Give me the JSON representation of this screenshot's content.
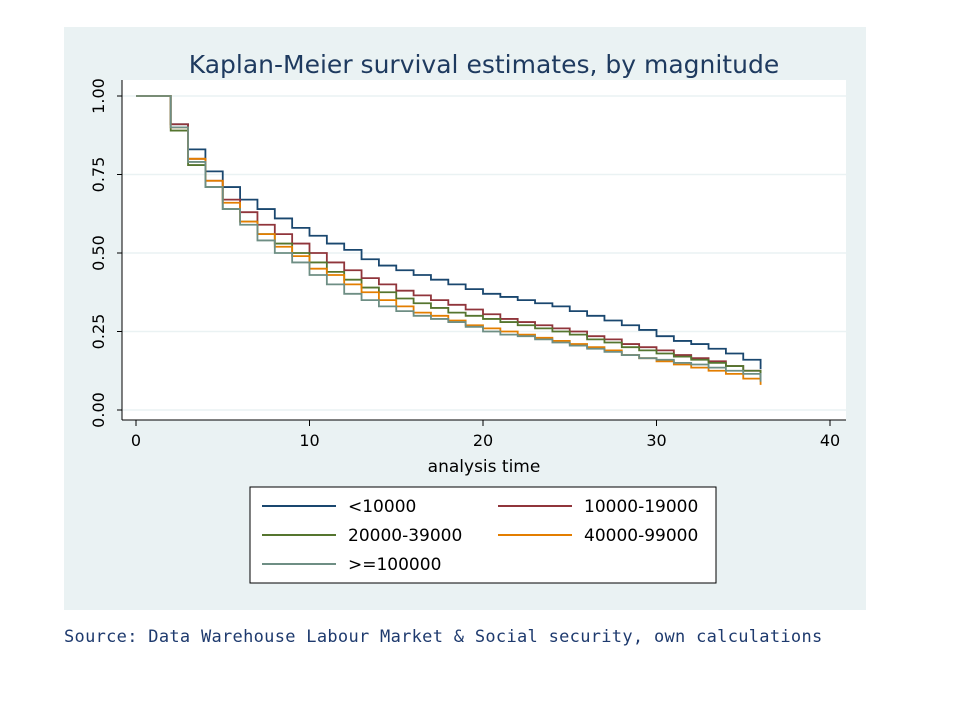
{
  "colors": {
    "panel_bg": "#EAF2F3",
    "plot_bg": "#FFFFFF",
    "grid": "#EAF2F3",
    "axis": "#000000",
    "title": "#1E3A5F",
    "caption": "#1E3A6E"
  },
  "chart_data": {
    "type": "line",
    "step": true,
    "title": "Kaplan-Meier survival estimates, by magnitude",
    "xlabel": "analysis time",
    "ylabel": "",
    "xlim": [
      0,
      40
    ],
    "ylim": [
      0,
      1
    ],
    "xticks": [
      0,
      10,
      20,
      30,
      40
    ],
    "xtick_labels": [
      "0",
      "10",
      "20",
      "30",
      "40"
    ],
    "yticks": [
      0,
      0.25,
      0.5,
      0.75,
      1
    ],
    "ytick_labels": [
      "0.00",
      "0.25",
      "0.50",
      "0.75",
      "1.00"
    ],
    "grid": true,
    "legend": "bottom",
    "x": [
      0,
      1,
      2,
      3,
      4,
      5,
      6,
      7,
      8,
      9,
      10,
      11,
      12,
      13,
      14,
      15,
      16,
      17,
      18,
      19,
      20,
      21,
      22,
      23,
      24,
      25,
      26,
      27,
      28,
      29,
      30,
      31,
      32,
      33,
      34,
      35,
      36
    ],
    "series": [
      {
        "name": "<10000",
        "color": "#1A476F",
        "values": [
          1.0,
          1.0,
          0.91,
          0.83,
          0.76,
          0.71,
          0.67,
          0.64,
          0.61,
          0.58,
          0.555,
          0.53,
          0.51,
          0.48,
          0.46,
          0.445,
          0.43,
          0.415,
          0.4,
          0.385,
          0.37,
          0.36,
          0.35,
          0.34,
          0.33,
          0.315,
          0.3,
          0.285,
          0.27,
          0.255,
          0.235,
          0.22,
          0.21,
          0.195,
          0.18,
          0.16,
          0.13
        ]
      },
      {
        "name": "10000-19000",
        "color": "#90353B",
        "values": [
          1.0,
          1.0,
          0.91,
          0.8,
          0.73,
          0.67,
          0.63,
          0.59,
          0.56,
          0.53,
          0.5,
          0.47,
          0.445,
          0.42,
          0.4,
          0.38,
          0.365,
          0.35,
          0.335,
          0.32,
          0.305,
          0.29,
          0.28,
          0.27,
          0.26,
          0.25,
          0.235,
          0.225,
          0.21,
          0.2,
          0.19,
          0.175,
          0.165,
          0.155,
          0.14,
          0.125,
          0.105
        ]
      },
      {
        "name": "20000-39000",
        "color": "#55752F",
        "values": [
          1.0,
          1.0,
          0.89,
          0.78,
          0.71,
          0.64,
          0.6,
          0.56,
          0.53,
          0.5,
          0.47,
          0.44,
          0.415,
          0.39,
          0.375,
          0.355,
          0.34,
          0.325,
          0.31,
          0.3,
          0.29,
          0.28,
          0.27,
          0.26,
          0.25,
          0.24,
          0.225,
          0.215,
          0.2,
          0.19,
          0.18,
          0.17,
          0.16,
          0.15,
          0.14,
          0.125,
          0.1
        ]
      },
      {
        "name": "40000-99000",
        "color": "#E37E00",
        "values": [
          1.0,
          1.0,
          0.9,
          0.8,
          0.73,
          0.66,
          0.6,
          0.56,
          0.52,
          0.49,
          0.45,
          0.43,
          0.4,
          0.375,
          0.35,
          0.33,
          0.31,
          0.3,
          0.285,
          0.27,
          0.26,
          0.25,
          0.24,
          0.23,
          0.22,
          0.21,
          0.2,
          0.19,
          0.175,
          0.165,
          0.155,
          0.145,
          0.135,
          0.125,
          0.115,
          0.1,
          0.08
        ]
      },
      {
        "name": ">=100000",
        "color": "#6E8E84",
        "values": [
          1.0,
          1.0,
          0.9,
          0.79,
          0.71,
          0.64,
          0.59,
          0.54,
          0.5,
          0.47,
          0.43,
          0.4,
          0.37,
          0.35,
          0.33,
          0.315,
          0.3,
          0.29,
          0.28,
          0.265,
          0.25,
          0.24,
          0.235,
          0.225,
          0.215,
          0.205,
          0.195,
          0.185,
          0.175,
          0.165,
          0.16,
          0.15,
          0.145,
          0.135,
          0.125,
          0.115,
          0.09
        ]
      }
    ]
  },
  "source_caption": "Source: Data Warehouse Labour Market & Social security, own calculations"
}
